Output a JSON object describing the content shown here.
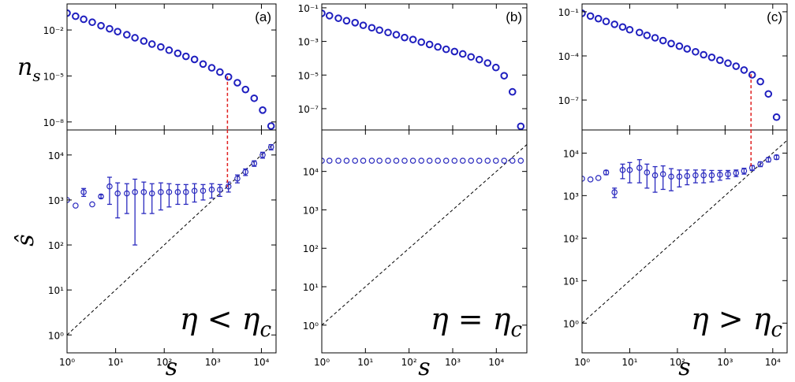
{
  "chart_data": [
    {
      "type": "scatter",
      "label": "(a)",
      "ylabel": "n",
      "ylabel_sub": "s",
      "log": true,
      "color": "#1f1fbf",
      "x": [
        1,
        1.5,
        2.2,
        3.3,
        5,
        7.5,
        11,
        17,
        25,
        38,
        56,
        85,
        126,
        190,
        280,
        420,
        630,
        950,
        1400,
        2100,
        3200,
        4700,
        7100,
        10600,
        15800
      ],
      "values": [
        0.126,
        0.079,
        0.05,
        0.032,
        0.019,
        0.012,
        0.0078,
        0.0049,
        0.0031,
        0.0019,
        0.0012,
        0.00078,
        0.00048,
        0.0003,
        0.00019,
        0.00012,
        6e-05,
        3.4e-05,
        1.8e-05,
        8.7e-06,
        3.6e-06,
        1.3e-06,
        3.5e-07,
        5.9e-08,
        5.4e-09
      ],
      "xlim": [
        1,
        20000
      ],
      "xticks": [
        1,
        10,
        100,
        1000,
        10000
      ],
      "ylim": [
        3e-09,
        0.5
      ],
      "yticks": [
        {
          "value": 0.01,
          "label": "10⁻²"
        },
        {
          "value": 1e-05,
          "label": "10⁻⁵"
        },
        {
          "value": 1e-08,
          "label": "10⁻⁸"
        }
      ]
    },
    {
      "type": "scatter",
      "label": "(b)",
      "log": true,
      "color": "#1f1fbf",
      "x": [
        1,
        1.5,
        2.4,
        3.7,
        5.8,
        8.9,
        14,
        21,
        33,
        51,
        79,
        123,
        191,
        295,
        457,
        708,
        1100,
        1700,
        2630,
        4070,
        6310,
        9770,
        15100,
        23400,
        36300
      ],
      "values": [
        0.047,
        0.034,
        0.024,
        0.017,
        0.013,
        0.0091,
        0.0065,
        0.0047,
        0.0034,
        0.0025,
        0.0017,
        0.0013,
        0.00091,
        0.00066,
        0.00047,
        0.00034,
        0.00025,
        0.00018,
        0.00012,
        8.3e-05,
        5.2e-05,
        2.8e-05,
        9.1e-06,
        1e-06,
        8.9e-09
      ],
      "xlim": [
        1,
        50000
      ],
      "xticks": [
        1,
        10,
        100,
        1000,
        10000
      ],
      "ylim": [
        5.4e-09,
        0.17
      ],
      "yticks": [
        {
          "value": 0.1,
          "label": "10⁻¹"
        },
        {
          "value": 0.001,
          "label": "10⁻³"
        },
        {
          "value": 1e-05,
          "label": "10⁻⁵"
        },
        {
          "value": 1e-07,
          "label": "10⁻⁷"
        }
      ]
    },
    {
      "type": "scatter",
      "label": "(c)",
      "log": true,
      "color": "#1f1fbf",
      "x": [
        1,
        1.5,
        2.2,
        3.2,
        4.8,
        7.1,
        10,
        16,
        23,
        34,
        50,
        74,
        110,
        160,
        240,
        355,
        525,
        780,
        1150,
        1700,
        2500,
        3700,
        5500,
        8100,
        12000
      ],
      "values": [
        0.079,
        0.051,
        0.034,
        0.022,
        0.014,
        0.0092,
        0.006,
        0.0039,
        0.0025,
        0.0017,
        0.0011,
        0.00069,
        0.00046,
        0.0003,
        0.00019,
        0.00012,
        8e-05,
        5.1e-05,
        3.2e-05,
        2e-05,
        1.1e-05,
        5.2e-06,
        1.8e-06,
        2.6e-07,
        6.9e-09
      ],
      "xlim": [
        1,
        20000
      ],
      "xticks": [
        1,
        10,
        100,
        1000,
        10000
      ],
      "ylim": [
        9.3e-10,
        0.34
      ],
      "yticks": [
        {
          "value": 0.1,
          "label": "10⁻¹"
        },
        {
          "value": 0.0001,
          "label": "10⁻⁴"
        },
        {
          "value": 1e-07,
          "label": "10⁻⁷"
        }
      ]
    },
    {
      "type": "errorbar",
      "ylabel": "ŝ",
      "xlabel": "s",
      "annotation": "η < η",
      "annotation_sub": "c",
      "log": true,
      "diagonal": true,
      "color": "#2b2bbf",
      "marker_color": "#e02020",
      "marker_x": 2000,
      "x": [
        1,
        1.5,
        2.2,
        3.3,
        5,
        7.5,
        11,
        17,
        25,
        38,
        56,
        85,
        126,
        190,
        280,
        420,
        630,
        950,
        1400,
        2100,
        3200,
        4700,
        7100,
        10600,
        15800
      ],
      "values": [
        1000,
        750,
        1500,
        800,
        1200,
        2000,
        1400,
        1400,
        1500,
        1500,
        1400,
        1500,
        1500,
        1500,
        1500,
        1600,
        1600,
        1700,
        1700,
        2000,
        3000,
        4200,
        6500,
        10000,
        15000
      ],
      "errors": [
        0,
        0,
        300,
        0,
        100,
        1200,
        1000,
        900,
        1400,
        1000,
        900,
        900,
        800,
        700,
        700,
        700,
        600,
        600,
        500,
        500,
        600,
        700,
        900,
        1500,
        2000
      ],
      "xlim": [
        1,
        20000
      ],
      "xticks": [
        {
          "value": 1,
          "label": "10⁰"
        },
        {
          "value": 10,
          "label": "10¹"
        },
        {
          "value": 100,
          "label": "10²"
        },
        {
          "value": 1000,
          "label": "10³"
        },
        {
          "value": 10000,
          "label": "10⁴"
        }
      ],
      "ylim": [
        0.4,
        36000
      ],
      "yticks": [
        {
          "value": 1,
          "label": "10⁰"
        },
        {
          "value": 10,
          "label": "10¹"
        },
        {
          "value": 100,
          "label": "10²"
        },
        {
          "value": 1000,
          "label": "10³"
        },
        {
          "value": 10000,
          "label": "10⁴"
        }
      ]
    },
    {
      "type": "errorbar",
      "xlabel": "s",
      "annotation": "η = η",
      "annotation_sub": "c",
      "log": true,
      "diagonal": true,
      "color": "#2b2bbf",
      "x": [
        1,
        1.5,
        2.4,
        3.7,
        5.8,
        8.9,
        14,
        21,
        33,
        51,
        79,
        123,
        191,
        295,
        457,
        708,
        1100,
        1700,
        2630,
        4070,
        6310,
        9770,
        15100,
        23400,
        36300
      ],
      "values": [
        19000,
        19000,
        19000,
        19000,
        19000,
        19000,
        19000,
        19000,
        19000,
        19000,
        19000,
        19000,
        19000,
        19000,
        19000,
        19000,
        19000,
        19000,
        19000,
        19000,
        19000,
        19000,
        19000,
        19000,
        19000
      ],
      "xlim": [
        1,
        50000
      ],
      "xticks": [
        {
          "value": 1,
          "label": "10⁰"
        },
        {
          "value": 10,
          "label": "10¹"
        },
        {
          "value": 100,
          "label": "10²"
        },
        {
          "value": 1000,
          "label": "10³"
        },
        {
          "value": 10000,
          "label": "10⁴"
        }
      ],
      "ylim": [
        0.19,
        120000
      ],
      "yticks": [
        {
          "value": 1,
          "label": "10⁰"
        },
        {
          "value": 10,
          "label": "10¹"
        },
        {
          "value": 100,
          "label": "10²"
        },
        {
          "value": 1000,
          "label": "10³"
        },
        {
          "value": 10000,
          "label": "10⁴"
        }
      ]
    },
    {
      "type": "errorbar",
      "xlabel": "s",
      "annotation": "η > η",
      "annotation_sub": "c",
      "log": true,
      "diagonal": true,
      "color": "#2b2bbf",
      "marker_color": "#e02020",
      "marker_x": 3500,
      "x": [
        1,
        1.5,
        2.2,
        3.2,
        4.8,
        7.1,
        10,
        16,
        23,
        34,
        50,
        74,
        110,
        160,
        240,
        355,
        525,
        780,
        1150,
        1700,
        2500,
        3700,
        5500,
        8100,
        12000
      ],
      "values": [
        2500,
        2400,
        2600,
        3500,
        1200,
        4000,
        4000,
        4500,
        3500,
        3000,
        3200,
        2800,
        2800,
        2900,
        3000,
        3000,
        3000,
        3100,
        3200,
        3400,
        3800,
        4500,
        5500,
        7000,
        8000
      ],
      "errors": [
        0,
        0,
        0,
        400,
        300,
        1500,
        2000,
        2500,
        2000,
        1800,
        1800,
        1500,
        1200,
        1100,
        1000,
        1000,
        900,
        800,
        700,
        600,
        600,
        600,
        700,
        800,
        900
      ],
      "xlim": [
        1,
        20000
      ],
      "xticks": [
        {
          "value": 1,
          "label": "10⁰"
        },
        {
          "value": 10,
          "label": "10¹"
        },
        {
          "value": 100,
          "label": "10²"
        },
        {
          "value": 1000,
          "label": "10³"
        },
        {
          "value": 10000,
          "label": "10⁴"
        }
      ],
      "ylim": [
        0.2,
        35000
      ],
      "yticks": [
        {
          "value": 1,
          "label": "10⁰"
        },
        {
          "value": 10,
          "label": "10¹"
        },
        {
          "value": 100,
          "label": "10²"
        },
        {
          "value": 1000,
          "label": "10³"
        },
        {
          "value": 10000,
          "label": "10⁴"
        }
      ]
    }
  ]
}
